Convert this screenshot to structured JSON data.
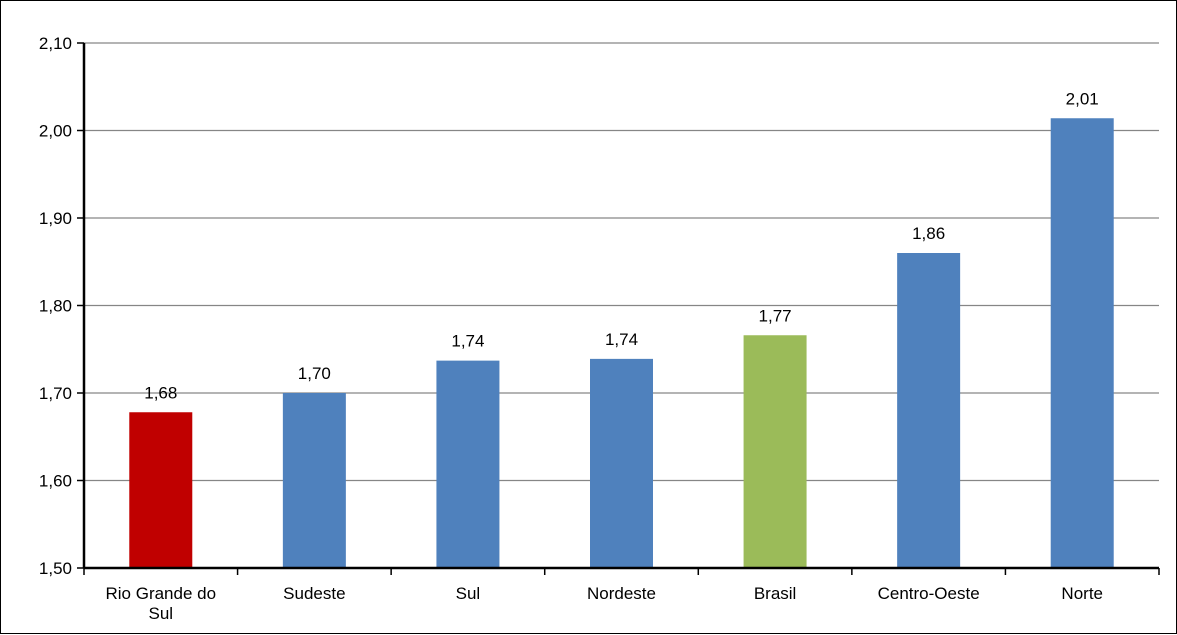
{
  "chart_data": {
    "type": "bar",
    "title": "",
    "xlabel": "",
    "ylabel": "",
    "categories": [
      [
        "Rio Grande do",
        "Sul"
      ],
      [
        "Sudeste"
      ],
      [
        "Sul"
      ],
      [
        "Nordeste"
      ],
      [
        "Brasil"
      ],
      [
        "Centro-Oeste"
      ],
      [
        "Norte"
      ]
    ],
    "values": [
      1.678,
      1.7,
      1.737,
      1.739,
      1.766,
      1.86,
      2.014
    ],
    "value_labels": [
      "1,68",
      "1,70",
      "1,74",
      "1,74",
      "1,77",
      "1,86",
      "2,01"
    ],
    "bar_colors": [
      "#C00000",
      "#4F81BD",
      "#4F81BD",
      "#4F81BD",
      "#9BBB59",
      "#4F81BD",
      "#4F81BD"
    ],
    "ylim": [
      1.5,
      2.1
    ],
    "y_ticks": [
      1.5,
      1.6,
      1.7,
      1.8,
      1.9,
      2.0,
      2.1
    ],
    "y_tick_labels": [
      "1,50",
      "1,60",
      "1,70",
      "1,80",
      "1,90",
      "2,00",
      "2,10"
    ],
    "grid": true,
    "legend": "none"
  }
}
